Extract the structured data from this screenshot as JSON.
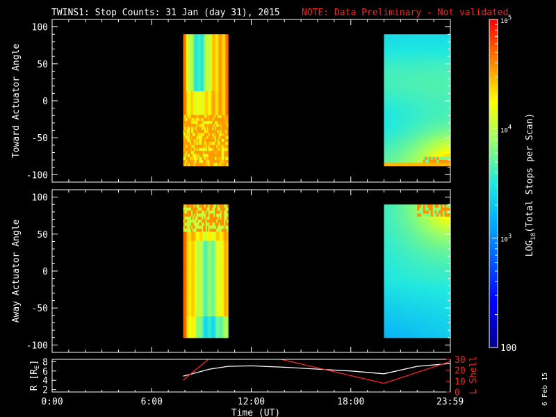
{
  "title": "TWINS1: Stop Counts: 31 Jan (day  31), 2015",
  "note": "NOTE: Data Preliminary - Not validated",
  "date_stamp": "6 Feb 15",
  "colors": {
    "background": "#000000",
    "axis": "#ffffff",
    "note": "#ff2020",
    "lshell": "#ff2020",
    "r": "#ffffff"
  },
  "chart_data": [
    {
      "type": "heatmap",
      "panel": "toward",
      "ylabel": "Toward Actuator Angle",
      "ylim": [
        -110,
        110
      ],
      "yticks": [
        100,
        50,
        0,
        -50,
        -100
      ],
      "xlim": [
        0,
        24
      ],
      "segments": [
        {
          "x": [
            7.9,
            10.6
          ],
          "y": [
            -88,
            90
          ],
          "pattern": "morning"
        },
        {
          "x": [
            20.0,
            24.0
          ],
          "y": [
            -88,
            90
          ],
          "pattern": "evening"
        }
      ]
    },
    {
      "type": "heatmap",
      "panel": "away",
      "ylabel": "Away Actuator Angle",
      "ylim": [
        -110,
        110
      ],
      "yticks": [
        100,
        50,
        0,
        -50,
        -100
      ],
      "xlim": [
        0,
        24
      ],
      "segments": [
        {
          "x": [
            7.9,
            10.6
          ],
          "y": [
            -90,
            90
          ],
          "pattern": "morning"
        },
        {
          "x": [
            20.0,
            24.0
          ],
          "y": [
            -90,
            90
          ],
          "pattern": "evening"
        }
      ]
    },
    {
      "type": "line",
      "panel": "orbit",
      "ylabel": "R [RE]",
      "y2label": "L Shell",
      "xlabel": "Time (UT)",
      "xlim": [
        0,
        24
      ],
      "xticks": [
        "0:00",
        "6:00",
        "12:00",
        "18:00",
        "23:59"
      ],
      "xtick_values": [
        0,
        6,
        12,
        18,
        23.983
      ],
      "ylim": [
        1.5,
        8.5
      ],
      "yticks": [
        2,
        4,
        6,
        8
      ],
      "y2lim": [
        0,
        30
      ],
      "y2ticks": [
        0,
        10,
        20,
        30
      ],
      "series": [
        {
          "axis": "left",
          "x": [
            7.9,
            9.5,
            10.6,
            12,
            14,
            16,
            18,
            20.0,
            22,
            24
          ],
          "y": [
            4.9,
            6.4,
            7.0,
            7.1,
            6.8,
            6.4,
            6.0,
            5.4,
            7.0,
            7.6
          ]
        },
        {
          "axis": "right",
          "x": [
            7.9,
            9.5
          ],
          "y": [
            11,
            31
          ]
        },
        {
          "axis": "right",
          "x": [
            13.5,
            20.0,
            24
          ],
          "y": [
            31,
            8,
            28
          ]
        }
      ]
    }
  ],
  "colorbar": {
    "label": "LOG10(Total Stops per Scan)",
    "label_parts": [
      "LOG",
      "10",
      "(Total Stops per Scan)"
    ],
    "scale": "log",
    "range": [
      100,
      100000
    ],
    "ticks": [
      {
        "value": 100,
        "base": "100",
        "exp": ""
      },
      {
        "value": 1000,
        "base": "10",
        "exp": "3"
      },
      {
        "value": 10000,
        "base": "10",
        "exp": "4"
      },
      {
        "value": 100000,
        "base": "10",
        "exp": "5"
      }
    ]
  },
  "orbit_labels": {
    "r": "R [R",
    "r_sub": "E",
    "r_close": "]",
    "lshell": "L Shell"
  }
}
